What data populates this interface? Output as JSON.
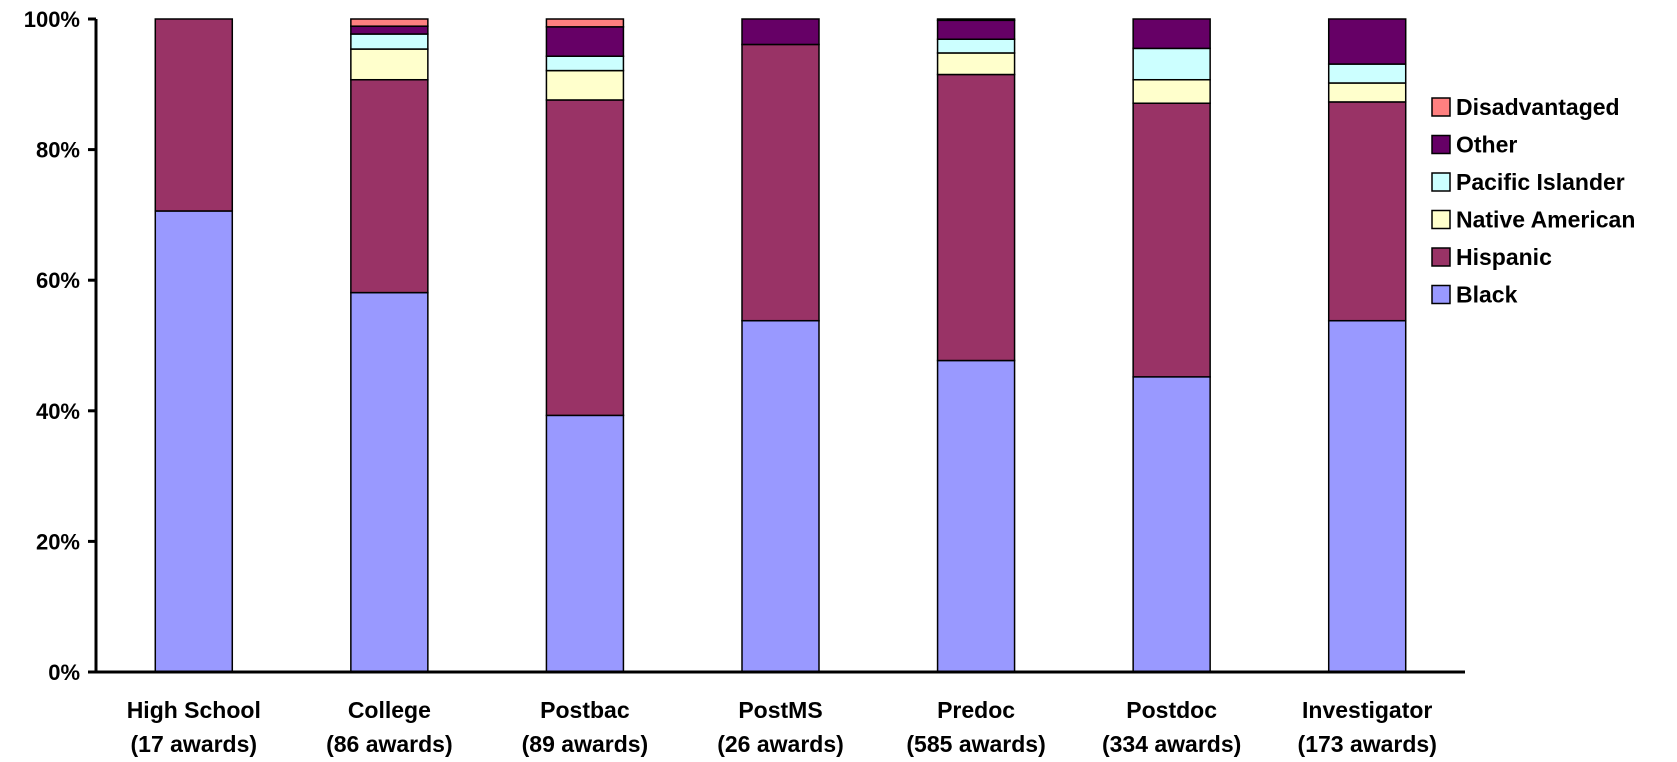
{
  "chart_data": {
    "type": "bar",
    "stacked": "percent",
    "categories": [
      [
        "High School",
        "(17 awards)"
      ],
      [
        "College",
        "(86 awards)"
      ],
      [
        "Postbac",
        "(89 awards)"
      ],
      [
        "PostMS",
        "(26 awards)"
      ],
      [
        "Predoc",
        "(585 awards)"
      ],
      [
        "Postdoc",
        "(334 awards)"
      ],
      [
        "Investigator",
        "(173 awards)"
      ]
    ],
    "series": [
      {
        "name": "Black",
        "color": "#9999ff",
        "values": [
          70.6,
          58.1,
          39.3,
          53.8,
          47.7,
          45.2,
          53.8
        ]
      },
      {
        "name": "Hispanic",
        "color": "#993366",
        "values": [
          29.4,
          32.6,
          48.3,
          42.3,
          43.8,
          41.9,
          33.5
        ]
      },
      {
        "name": "Native American",
        "color": "#ffffcc",
        "values": [
          0,
          4.7,
          4.5,
          0,
          3.3,
          3.6,
          2.9
        ]
      },
      {
        "name": "Pacific Islander",
        "color": "#ccffff",
        "values": [
          0,
          2.3,
          2.2,
          0,
          2.1,
          4.8,
          2.9
        ]
      },
      {
        "name": "Other",
        "color": "#660066",
        "values": [
          0,
          1.2,
          4.5,
          3.9,
          2.9,
          4.5,
          6.9
        ]
      },
      {
        "name": "Disadvantaged",
        "color": "#ff8080",
        "values": [
          0,
          1.1,
          1.2,
          0,
          0.2,
          0,
          0
        ]
      }
    ],
    "yticks": [
      "0%",
      "20%",
      "40%",
      "60%",
      "80%",
      "100%"
    ],
    "ylim": [
      0,
      100
    ],
    "legend_position": "right",
    "legend_order": [
      "Disadvantaged",
      "Other",
      "Pacific Islander",
      "Native American",
      "Hispanic",
      "Black"
    ],
    "grid": false
  }
}
